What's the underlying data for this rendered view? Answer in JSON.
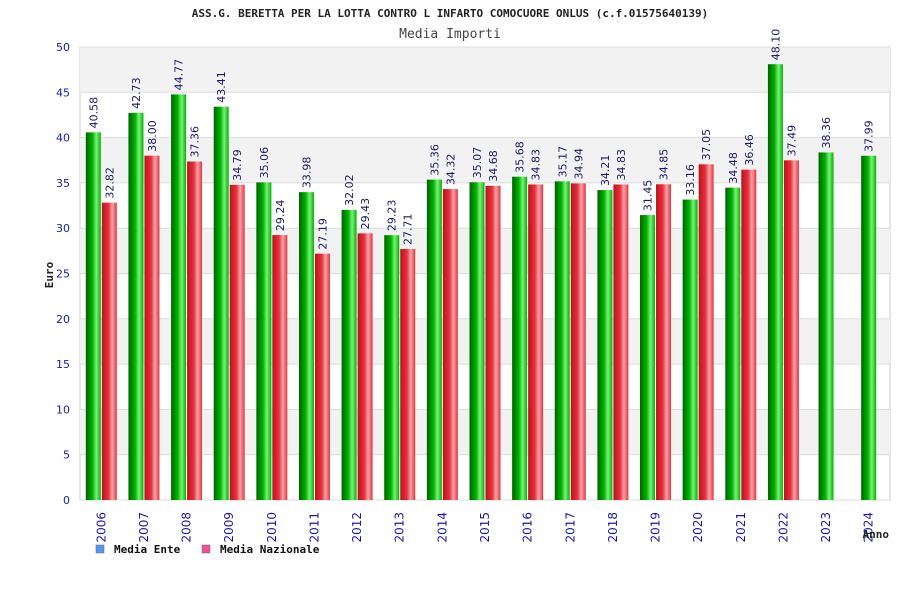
{
  "chart_data": {
    "type": "bar",
    "title": "ASS.G. BERETTA PER LA LOTTA CONTRO L INFARTO COMOCUORE ONLUS (c.f.01575640139)",
    "subtitle": "Media Importi",
    "ylabel": "Euro",
    "xlabel": "Anno",
    "ylim": [
      0,
      50
    ],
    "yticks": [
      0,
      5,
      10,
      15,
      20,
      25,
      30,
      35,
      40,
      45,
      50
    ],
    "grid": true,
    "legend_position": "bottom-left",
    "categories": [
      "2006",
      "2007",
      "2008",
      "2009",
      "2010",
      "2011",
      "2012",
      "2013",
      "2014",
      "2015",
      "2016",
      "2017",
      "2018",
      "2019",
      "2020",
      "2021",
      "2022",
      "2023",
      "2024"
    ],
    "series": [
      {
        "name": "Media Ente",
        "color": "#00b400",
        "legend_color": "#5599ee",
        "values": [
          40.58,
          42.73,
          44.77,
          43.41,
          35.06,
          33.98,
          32.02,
          29.23,
          35.36,
          35.07,
          35.68,
          35.17,
          34.21,
          31.45,
          33.16,
          34.48,
          48.1,
          38.36,
          37.99
        ],
        "labels": [
          "40.58",
          "42.73",
          "44.77",
          "43.41",
          "35.06",
          "33.98",
          "32.02",
          "29.23",
          "35.36",
          "35.07",
          "35.68",
          "35.17",
          "34.21",
          "31.45",
          "33.16",
          "34.48",
          "48.10",
          "38.36",
          "37.99"
        ]
      },
      {
        "name": "Media Nazionale",
        "color": "#e8313c",
        "legend_color": "#ee5599",
        "values": [
          32.82,
          38.0,
          37.36,
          34.79,
          29.24,
          27.19,
          29.43,
          27.71,
          34.32,
          34.68,
          34.83,
          34.94,
          34.83,
          34.85,
          37.05,
          36.46,
          37.49,
          null,
          null
        ],
        "labels": [
          "32.82",
          "38.00",
          "37.36",
          "34.79",
          "29.24",
          "27.19",
          "29.43",
          "27.71",
          "34.32",
          "34.68",
          "34.83",
          "34.94",
          "34.83",
          "34.85",
          "37.05",
          "36.46",
          "37.49",
          "",
          ""
        ]
      }
    ]
  }
}
